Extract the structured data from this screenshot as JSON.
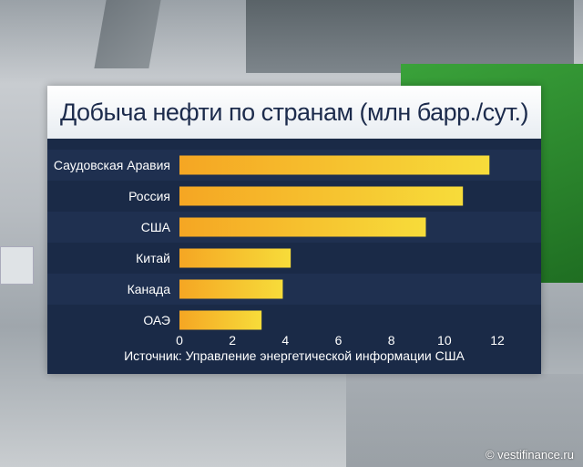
{
  "watermark": "© vestifinance.ru",
  "source_note": "Источник: Управление энергетической информации США",
  "colors": {
    "panel_bg": "#1a2a47",
    "bar_start": "#f5a623",
    "bar_end": "#f7dc3a",
    "title_text": "#1c2b4c",
    "label_text": "#ffffff"
  },
  "chart_data": {
    "type": "bar",
    "orientation": "horizontal",
    "title": "Добыча нефти по странам (млн барр./сут.)",
    "categories": [
      "Саудовская Аравия",
      "Россия",
      "США",
      "Китай",
      "Канада",
      "ОАЭ"
    ],
    "values": [
      11.7,
      10.7,
      9.3,
      4.2,
      3.9,
      3.1
    ],
    "xlim": [
      0,
      12
    ],
    "xticks": [
      0,
      2,
      4,
      6,
      8,
      10,
      12
    ],
    "grid": false,
    "legend": "none"
  }
}
